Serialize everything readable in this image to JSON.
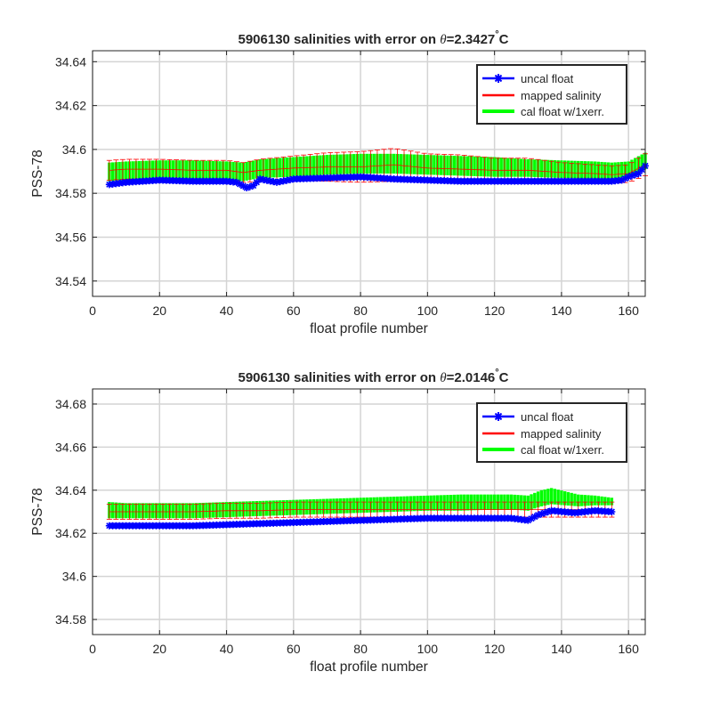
{
  "chart_data": [
    {
      "type": "line",
      "title_prefix": "5906130 salinities with error on ",
      "title_theta": "θ",
      "title_value": "=2.3427",
      "title_degree": "°",
      "title_unit": "C",
      "xlabel": "float profile number",
      "ylabel": "PSS-78",
      "xlim": [
        0,
        165
      ],
      "ylim": [
        34.533,
        34.645
      ],
      "xticks": [
        0,
        20,
        40,
        60,
        80,
        100,
        120,
        140,
        160
      ],
      "yticks": [
        34.54,
        34.56,
        34.58,
        34.6,
        34.62,
        34.64
      ],
      "grid": true,
      "legend_position": "top-right",
      "legend": [
        "uncal float",
        "mapped salinity",
        "cal float w/1xerr."
      ],
      "colors": {
        "uncal": "#0000ff",
        "mapped": "#ff0000",
        "cal": "#00ff00"
      },
      "x_range": [
        5,
        165
      ],
      "uncal_float": {
        "x": [
          5,
          10,
          20,
          30,
          40,
          43,
          46,
          48,
          50,
          55,
          60,
          70,
          80,
          90,
          100,
          110,
          120,
          130,
          140,
          150,
          155,
          158,
          160,
          163,
          165
        ],
        "y": [
          34.584,
          34.585,
          34.586,
          34.5855,
          34.5855,
          34.585,
          34.5825,
          34.5835,
          34.5865,
          34.585,
          34.5865,
          34.587,
          34.5875,
          34.5865,
          34.586,
          34.5855,
          34.5855,
          34.5855,
          34.5855,
          34.5855,
          34.5855,
          34.586,
          34.5875,
          34.589,
          34.5925
        ]
      },
      "mapped_salinity": {
        "x": [
          5,
          10,
          20,
          30,
          40,
          45,
          50,
          60,
          70,
          80,
          90,
          100,
          110,
          120,
          130,
          140,
          150,
          155,
          160,
          165
        ],
        "y": [
          34.5905,
          34.591,
          34.591,
          34.5905,
          34.5905,
          34.5895,
          34.5905,
          34.5915,
          34.592,
          34.592,
          34.593,
          34.5915,
          34.591,
          34.5905,
          34.5905,
          34.5895,
          34.589,
          34.5885,
          34.589,
          34.593
        ],
        "err": [
          0.0045,
          0.0045,
          0.0045,
          0.0045,
          0.0045,
          0.0045,
          0.005,
          0.0055,
          0.0065,
          0.007,
          0.0075,
          0.0065,
          0.0065,
          0.0055,
          0.0055,
          0.0045,
          0.004,
          0.004,
          0.004,
          0.005
        ]
      },
      "cal_float": {
        "x": [
          5,
          10,
          20,
          30,
          40,
          45,
          50,
          60,
          70,
          80,
          90,
          100,
          110,
          120,
          130,
          140,
          150,
          155,
          160,
          165
        ],
        "lo": [
          34.5855,
          34.586,
          34.5865,
          34.586,
          34.586,
          34.5855,
          34.587,
          34.5875,
          34.5885,
          34.589,
          34.589,
          34.5885,
          34.588,
          34.5875,
          34.5875,
          34.587,
          34.5865,
          34.5865,
          34.5875,
          34.591
        ],
        "hi": [
          34.594,
          34.5945,
          34.595,
          34.595,
          34.5945,
          34.594,
          34.5955,
          34.5965,
          34.5975,
          34.598,
          34.598,
          34.5975,
          34.597,
          34.5965,
          34.5955,
          34.595,
          34.5945,
          34.594,
          34.5945,
          34.5985
        ]
      }
    },
    {
      "type": "line",
      "title_prefix": "5906130 salinities with error on ",
      "title_theta": "θ",
      "title_value": "=2.0146",
      "title_degree": "°",
      "title_unit": "C",
      "xlabel": "float profile number",
      "ylabel": "PSS-78",
      "xlim": [
        0,
        165
      ],
      "ylim": [
        34.573,
        34.687
      ],
      "xticks": [
        0,
        20,
        40,
        60,
        80,
        100,
        120,
        140,
        160
      ],
      "yticks": [
        34.58,
        34.6,
        34.62,
        34.64,
        34.66,
        34.68
      ],
      "grid": true,
      "legend_position": "top-right",
      "legend": [
        "uncal float",
        "mapped salinity",
        "cal float w/1xerr."
      ],
      "colors": {
        "uncal": "#0000ff",
        "mapped": "#ff0000",
        "cal": "#00ff00"
      },
      "x_range": [
        5,
        155
      ],
      "uncal_float": {
        "x": [
          5,
          10,
          20,
          30,
          40,
          50,
          60,
          70,
          80,
          90,
          100,
          110,
          115,
          120,
          125,
          130,
          133,
          137,
          144,
          150,
          155
        ],
        "y": [
          34.6235,
          34.6235,
          34.6235,
          34.6235,
          34.624,
          34.6245,
          34.625,
          34.6255,
          34.626,
          34.6265,
          34.627,
          34.627,
          34.627,
          34.627,
          34.627,
          34.626,
          34.6285,
          34.6305,
          34.6295,
          34.6305,
          34.63
        ]
      },
      "mapped_salinity": {
        "x": [
          5,
          10,
          20,
          30,
          40,
          50,
          60,
          70,
          80,
          90,
          100,
          110,
          120,
          125,
          130,
          137,
          145,
          150,
          155
        ],
        "y": [
          34.63,
          34.63,
          34.63,
          34.63,
          34.6305,
          34.6305,
          34.631,
          34.631,
          34.631,
          34.631,
          34.631,
          34.631,
          34.631,
          34.631,
          34.631,
          34.631,
          34.631,
          34.631,
          34.631
        ],
        "err": [
          0.0035,
          0.0035,
          0.0035,
          0.0035,
          0.0035,
          0.0035,
          0.0035,
          0.0035,
          0.0035,
          0.0035,
          0.0035,
          0.0035,
          0.0035,
          0.0035,
          0.0035,
          0.0035,
          0.0035,
          0.0035,
          0.0035
        ]
      },
      "cal_float": {
        "x": [
          5,
          10,
          20,
          30,
          40,
          50,
          60,
          70,
          80,
          90,
          100,
          110,
          120,
          125,
          130,
          134,
          137,
          145,
          150,
          155
        ],
        "lo": [
          34.627,
          34.627,
          34.627,
          34.627,
          34.6275,
          34.628,
          34.6285,
          34.629,
          34.6295,
          34.63,
          34.6305,
          34.6305,
          34.631,
          34.631,
          34.6305,
          34.6325,
          34.6335,
          34.6325,
          34.633,
          34.633
        ],
        "hi": [
          34.6345,
          34.634,
          34.634,
          34.634,
          34.6345,
          34.635,
          34.6355,
          34.636,
          34.6365,
          34.637,
          34.6375,
          34.638,
          34.638,
          34.638,
          34.6375,
          34.64,
          34.641,
          34.638,
          34.6375,
          34.6365
        ]
      }
    }
  ]
}
